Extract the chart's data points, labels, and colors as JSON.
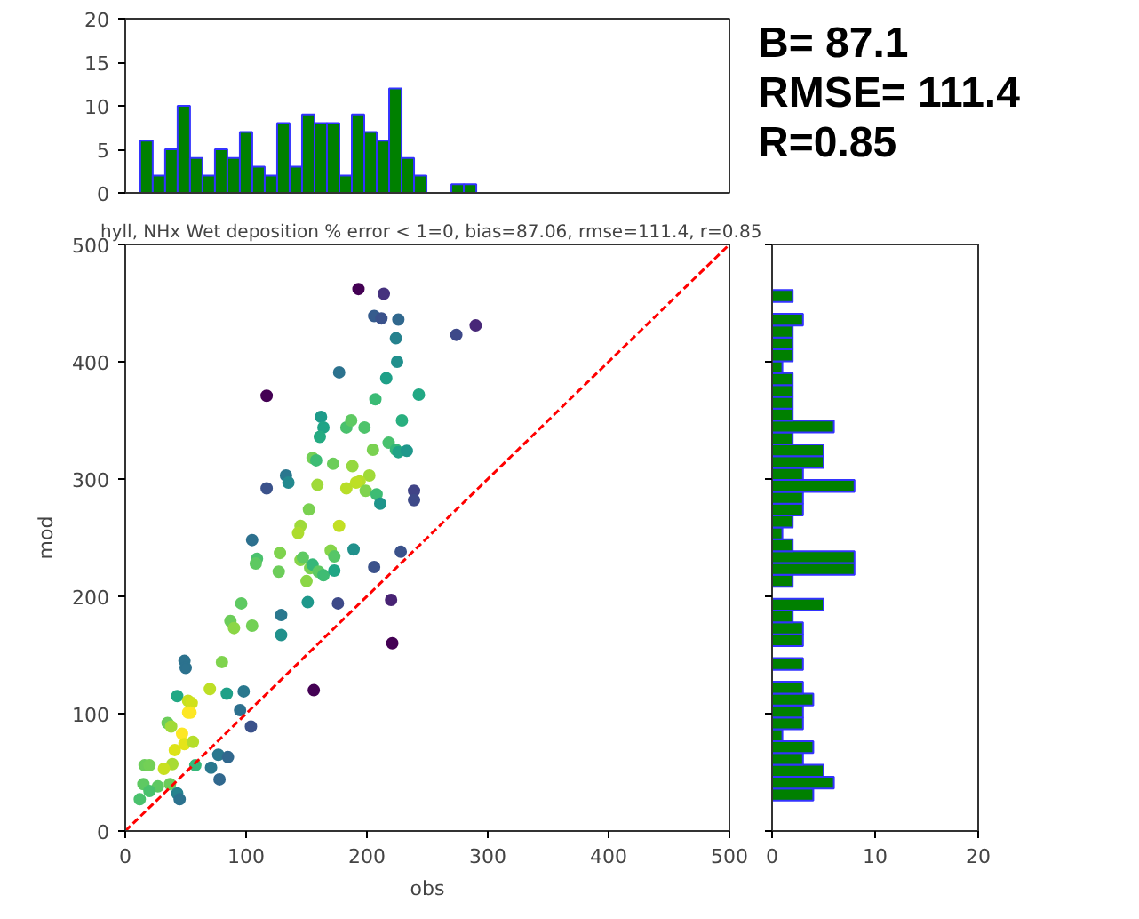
{
  "chart_data": [
    {
      "type": "histogram",
      "xlim": [
        0,
        500
      ],
      "ylim": [
        0,
        20
      ],
      "yticks": [
        0,
        5,
        10,
        15,
        20
      ],
      "tick_labels": "y",
      "color": "#008000",
      "bins": [
        12.4,
        22.7,
        33.0,
        43.3,
        53.6,
        63.9,
        74.2,
        84.5,
        94.8,
        105.1,
        115.4,
        125.7,
        136.0,
        146.3,
        156.6,
        166.9,
        177.2,
        187.5,
        197.8,
        208.1,
        218.4,
        228.7,
        239.0,
        249.3,
        259.6,
        269.9,
        280.2,
        290.5
      ],
      "values": [
        6,
        2,
        5,
        10,
        4,
        2,
        5,
        4,
        7,
        3,
        2,
        8,
        3,
        9,
        8,
        8,
        2,
        9,
        7,
        6,
        12,
        4,
        2,
        0,
        0,
        1,
        1
      ]
    },
    {
      "type": "other",
      "annotations": [
        "B= 87.1",
        "RMSE= 111.4",
        "R=0.85"
      ]
    },
    {
      "type": "scatter",
      "title": "hyll, NHx Wet deposition % error < 1=0, bias=87.06, rmse=111.4, r=0.85",
      "xlabel": "obs",
      "ylabel": "mod",
      "xlim": [
        0,
        500
      ],
      "ylim": [
        0,
        500
      ],
      "xticks": [
        0,
        100,
        200,
        300,
        400,
        500
      ],
      "yticks": [
        0,
        100,
        200,
        300,
        400,
        500
      ],
      "series": [
        {
          "type": "scatter",
          "marker": "circle",
          "x": [
            193,
            214,
            206,
            212,
            226,
            224,
            225,
            274,
            290,
            177,
            216,
            243,
            117,
            207,
            162,
            164,
            161,
            183,
            187,
            198,
            229,
            218,
            205,
            224,
            226,
            233,
            155,
            158,
            172,
            188,
            202,
            194,
            191,
            159,
            183,
            199,
            208,
            211,
            133,
            135,
            117,
            239,
            239,
            152,
            145,
            143,
            177,
            105,
            189,
            228,
            128,
            109,
            108,
            127,
            150,
            145,
            147,
            153,
            155,
            160,
            164,
            170,
            173,
            173,
            206,
            151,
            220,
            176,
            221,
            96,
            87,
            90,
            105,
            129,
            129,
            49,
            50,
            80,
            156,
            70,
            43,
            84,
            98,
            52,
            55,
            52,
            54,
            95,
            104,
            35,
            38,
            47,
            49,
            56,
            41,
            77,
            85,
            58,
            39,
            32,
            71,
            16,
            20,
            78,
            15,
            27,
            37,
            20,
            43,
            45,
            12
          ],
          "values": [
            462,
            458,
            439,
            437,
            436,
            420,
            400,
            423,
            431,
            391,
            386,
            372,
            371,
            368,
            353,
            344,
            336,
            344,
            350,
            344,
            350,
            331,
            325,
            325,
            323,
            324,
            318,
            316,
            313,
            311,
            303,
            298,
            297,
            295,
            292,
            290,
            287,
            279,
            303,
            297,
            292,
            290,
            282,
            274,
            260,
            254,
            260,
            248,
            240,
            238,
            237,
            232,
            228,
            221,
            213,
            231,
            233,
            224,
            227,
            221,
            218,
            239,
            234,
            222,
            225,
            195,
            197,
            194,
            160,
            194,
            179,
            173,
            175,
            184,
            167,
            145,
            139,
            144,
            120,
            121,
            115,
            117,
            119,
            111,
            109,
            101,
            101,
            103,
            89,
            92,
            89,
            83,
            74,
            76,
            69,
            65,
            63,
            56,
            57,
            53,
            54,
            56,
            56,
            44,
            40,
            38,
            40,
            34,
            32,
            27,
            27
          ],
          "colors": [
            "#440154",
            "#46327e",
            "#365c8d",
            "#3b528b",
            "#31688e",
            "#26828e",
            "#21908d",
            "#3e4989",
            "#482878",
            "#2c728e",
            "#1fa088",
            "#22a884",
            "#440154",
            "#3bbb75",
            "#1e9b8a",
            "#20a486",
            "#25ab82",
            "#4ac16d",
            "#5ec962",
            "#4ec36b",
            "#29af7f",
            "#48c16e",
            "#7ad151",
            "#35b779",
            "#20a386",
            "#1f988b",
            "#73d056",
            "#3dbc74",
            "#6ccd5a",
            "#95d840",
            "#a0da39",
            "#b5de2b",
            "#bddf26",
            "#9fda3a",
            "#b8de29",
            "#7fd34e",
            "#3dbc74",
            "#1f958b",
            "#2a778e",
            "#23898e",
            "#3b528b",
            "#414487",
            "#3e4a89",
            "#7ad151",
            "#9fda3a",
            "#addc30",
            "#c2df23",
            "#2d708e",
            "#21918c",
            "#3b528b",
            "#7fd34e",
            "#4ac16d",
            "#5ec962",
            "#6ccd5a",
            "#8bd646",
            "#86d549",
            "#5ec962",
            "#7ad151",
            "#35b779",
            "#5ec962",
            "#3fbc73",
            "#86d549",
            "#56c667",
            "#21a685",
            "#3b528b",
            "#1f988b",
            "#482374",
            "#3e4a89",
            "#440154",
            "#5ec962",
            "#6ccd5a",
            "#8bd646",
            "#73d056",
            "#2a788e",
            "#21918c",
            "#2c728e",
            "#2c728e",
            "#7fd34e",
            "#440154",
            "#bddf26",
            "#22a884",
            "#1fa088",
            "#2a788e",
            "#c8e020",
            "#d0e11c",
            "#fde725",
            "#fde725",
            "#2d708e",
            "#3b528b",
            "#6ccd5a",
            "#a0da39",
            "#fde725",
            "#e5e419",
            "#b5de2b",
            "#dde318",
            "#2a788e",
            "#31688e",
            "#35b779",
            "#a8db34",
            "#c8e020",
            "#2a788e",
            "#6ccd5a",
            "#73d056",
            "#31688e",
            "#5ec962",
            "#5ec962",
            "#6ccd5a",
            "#4ac16d",
            "#26828e",
            "#2c728e",
            "#4ac16d"
          ]
        },
        {
          "type": "line",
          "x": [
            0,
            500
          ],
          "values": [
            0,
            500
          ],
          "color": "#ff0000",
          "line_style": "dashed"
        }
      ]
    },
    {
      "type": "histogram",
      "orientation": "horizontal",
      "xlim": [
        0,
        20
      ],
      "xticks": [
        0,
        10,
        20
      ],
      "ylim": [
        0,
        500
      ],
      "yticks": [
        {
          "value": 0,
          "label": null
        },
        {
          "value": 100,
          "label": null
        },
        {
          "value": 200,
          "label": null
        },
        {
          "value": 300,
          "label": null
        },
        {
          "value": 400,
          "label": null
        },
        {
          "value": 500,
          "label": null
        }
      ],
      "tick_labels": "x",
      "color": "#008000",
      "bins": [
        26.0,
        36.1,
        46.2,
        56.4,
        66.5,
        76.6,
        86.7,
        96.8,
        107.0,
        117.1,
        127.2,
        137.3,
        147.4,
        157.6,
        167.7,
        177.8,
        187.9,
        198.0,
        208.2,
        218.3,
        228.4,
        238.5,
        248.6,
        258.8,
        268.9,
        279.0,
        289.1,
        299.2,
        309.4,
        319.5,
        329.6,
        339.7,
        349.8,
        360.0,
        370.1,
        380.2,
        390.3,
        400.4,
        410.6,
        420.7,
        430.8,
        440.9,
        451.0,
        461.2
      ],
      "values": [
        4,
        6,
        5,
        3,
        4,
        1,
        3,
        3,
        4,
        3,
        0,
        3,
        0,
        3,
        3,
        2,
        5,
        0,
        2,
        8,
        8,
        2,
        1,
        2,
        3,
        3,
        8,
        3,
        5,
        5,
        2,
        6,
        2,
        2,
        2,
        2,
        1,
        2,
        2,
        2,
        3,
        0,
        2
      ]
    }
  ]
}
